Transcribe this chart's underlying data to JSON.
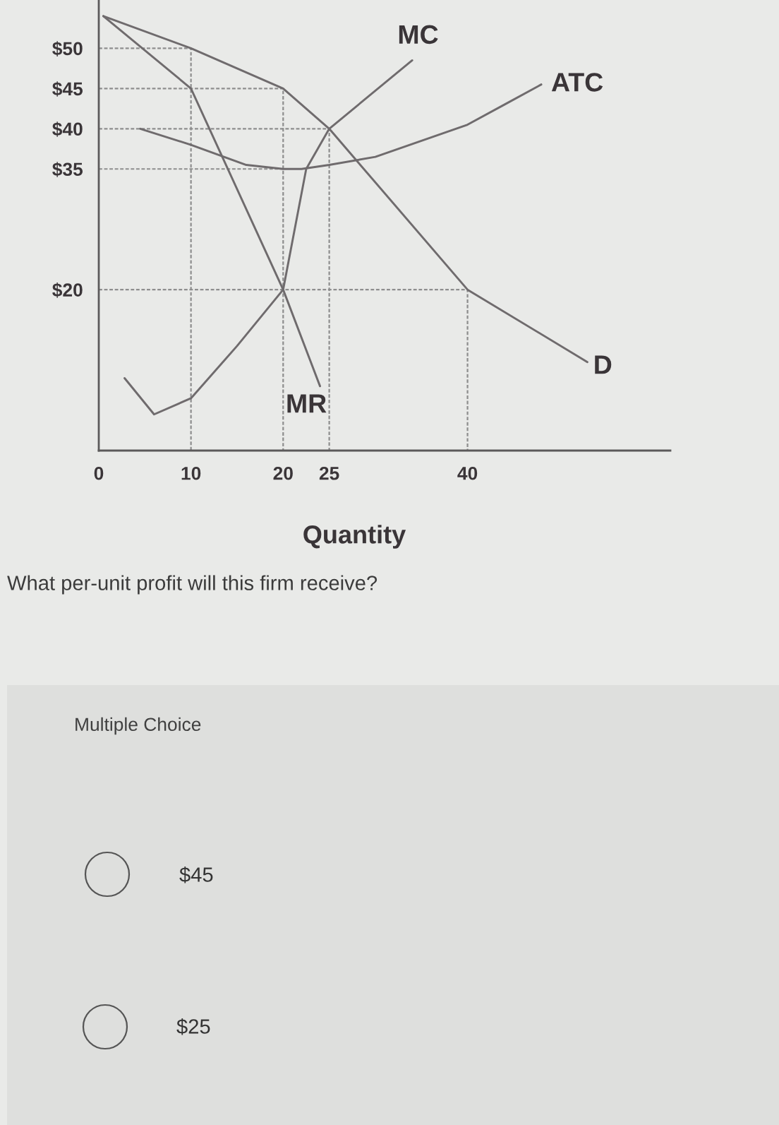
{
  "chart_data": {
    "type": "line",
    "xlabel": "Quantity",
    "line_style": "solid",
    "xlim": [
      0,
      62
    ],
    "ylim": [
      0,
      56
    ],
    "xticks": [
      0,
      10,
      20,
      25,
      40
    ],
    "yticks": [
      {
        "value": 20,
        "label": "$20"
      },
      {
        "value": 35,
        "label": "$35"
      },
      {
        "value": 40,
        "label": "$40"
      },
      {
        "value": 45,
        "label": "$45"
      },
      {
        "value": 50,
        "label": "$50"
      }
    ],
    "series": [
      {
        "name": "D",
        "color": "#6f6b6d",
        "x": [
          0.5,
          10,
          20,
          25,
          40,
          53
        ],
        "values": [
          54,
          50,
          45,
          40,
          20,
          11
        ]
      },
      {
        "name": "MR",
        "color": "#6f6b6d",
        "x": [
          0.5,
          10,
          20,
          24
        ],
        "values": [
          54,
          45,
          20,
          8
        ]
      },
      {
        "name": "MC",
        "color": "#6f6b6d",
        "x": [
          2.8,
          6,
          10,
          15,
          20,
          22.5,
          25,
          34
        ],
        "values": [
          9,
          4.5,
          6.5,
          13,
          20,
          35,
          40,
          48.5
        ]
      },
      {
        "name": "ATC",
        "color": "#6f6b6d",
        "x": [
          4.5,
          10,
          16,
          20,
          22,
          25,
          30,
          35,
          40,
          44,
          48
        ],
        "values": [
          40,
          38,
          35.5,
          35,
          35,
          35.5,
          36.5,
          38.5,
          40.5,
          43,
          45.5
        ]
      },
      {
        "color": "#8e8e8e",
        "line_style": "dashed",
        "x": [
          0,
          10,
          10
        ],
        "values": [
          50,
          50,
          0
        ]
      },
      {
        "color": "#8e8e8e",
        "line_style": "dashed",
        "x": [
          0,
          20,
          20
        ],
        "values": [
          45,
          45,
          0
        ]
      },
      {
        "color": "#8e8e8e",
        "line_style": "dashed",
        "x": [
          0,
          25,
          25
        ],
        "values": [
          40,
          40,
          0
        ]
      },
      {
        "color": "#8e8e8e",
        "line_style": "dashed",
        "x": [
          0,
          20
        ],
        "values": [
          35,
          35
        ]
      },
      {
        "color": "#8e8e8e",
        "line_style": "dashed",
        "x": [
          0,
          40,
          40
        ],
        "values": [
          20,
          20,
          0
        ]
      }
    ],
    "annotations": [
      "What per-unit profit will this firm receive?",
      "Multiple Choice",
      "$45",
      "$25"
    ]
  }
}
